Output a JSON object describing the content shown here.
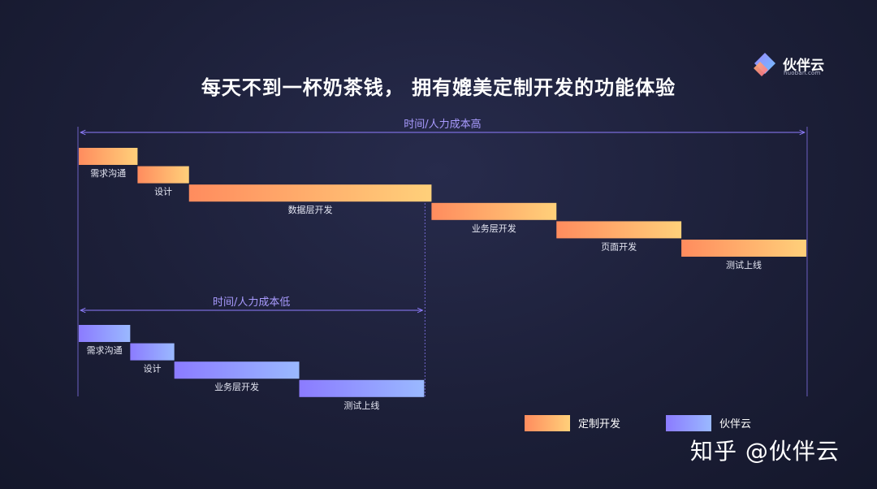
{
  "title": "每天不到一杯奶茶钱， 拥有媲美定制开发的功能体验",
  "logo": {
    "name": "伙伴云",
    "domain": "huoban.com",
    "icon": "huoban-logo-icon"
  },
  "watermark": "知乎 @伙伴云",
  "colors": {
    "custom_start": "#ff8c5e",
    "custom_end": "#ffd07a",
    "huoban_start": "#8b7bff",
    "huoban_end": "#9ab9ff",
    "span_line": "#8f7dff"
  },
  "chart_data": {
    "type": "gantt",
    "title": "每天不到一杯奶茶钱， 拥有媲美定制开发的功能体验",
    "xlabel": "",
    "ylabel": "",
    "grid": false,
    "legend_position": "bottom-right",
    "legend": [
      {
        "name": "定制开发",
        "series": "custom"
      },
      {
        "name": "伙伴云",
        "series": "huoban"
      }
    ],
    "spans": [
      {
        "label": "时间/人力成本高",
        "series": "custom"
      },
      {
        "label": "时间/人力成本低",
        "series": "huoban"
      }
    ],
    "series": [
      {
        "name": "定制开发",
        "key": "custom",
        "tasks": [
          {
            "label": "需求沟通",
            "duration": 0.8
          },
          {
            "label": "设计",
            "duration": 0.7
          },
          {
            "label": "数据层开发",
            "duration": 3.3
          },
          {
            "label": "业务层开发",
            "duration": 1.7
          },
          {
            "label": "页面开发",
            "duration": 1.7
          },
          {
            "label": "测试上线",
            "duration": 1.7
          }
        ]
      },
      {
        "name": "伙伴云",
        "key": "huoban",
        "tasks": [
          {
            "label": "需求沟通",
            "duration": 0.7
          },
          {
            "label": "设计",
            "duration": 0.6
          },
          {
            "label": "业务层开发",
            "duration": 1.7
          },
          {
            "label": "测试上线",
            "duration": 1.7
          }
        ]
      }
    ]
  }
}
